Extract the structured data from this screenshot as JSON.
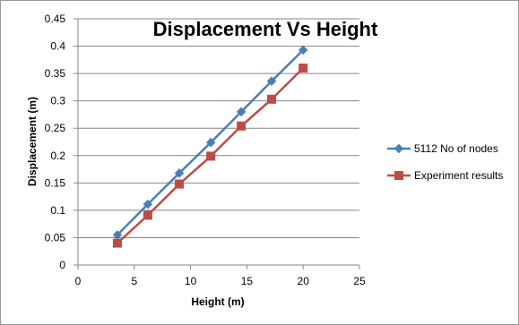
{
  "chart_data": {
    "type": "line",
    "title": "Displacement Vs Height",
    "xlabel": "Height (m)",
    "ylabel": "Displacement (m)",
    "xlim": [
      0,
      25
    ],
    "ylim": [
      0,
      0.45
    ],
    "x_ticks": [
      "0",
      "5",
      "10",
      "15",
      "20",
      "25"
    ],
    "y_ticks": [
      "0",
      "0.05",
      "0.1",
      "0.15",
      "0.2",
      "0.25",
      "0.3",
      "0.35",
      "0.4",
      "0.45"
    ],
    "grid": "horizontal",
    "legend_position": "right",
    "series": [
      {
        "name": "5112 No  of nodes",
        "color": "#4a7ebb",
        "marker": "diamond",
        "x": [
          3.5,
          6.2,
          9.0,
          11.8,
          14.5,
          17.2,
          20.0
        ],
        "y": [
          0.055,
          0.111,
          0.168,
          0.224,
          0.28,
          0.336,
          0.393
        ]
      },
      {
        "name": "Experiment results",
        "color": "#be4b48",
        "marker": "square",
        "x": [
          3.5,
          6.2,
          9.0,
          11.8,
          14.5,
          17.2,
          20.0
        ],
        "y": [
          0.04,
          0.091,
          0.148,
          0.199,
          0.254,
          0.303,
          0.36
        ]
      }
    ]
  }
}
